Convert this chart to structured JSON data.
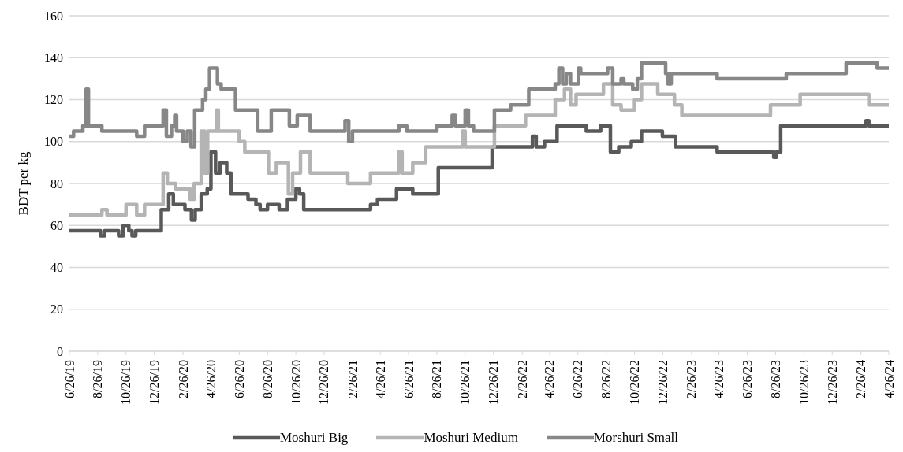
{
  "chart_data": {
    "type": "step",
    "ylabel": "BDT per kg",
    "xlim": [
      "2019-06-26",
      "2024-04-26"
    ],
    "ylim": [
      0,
      160
    ],
    "yticks": [
      0,
      20,
      40,
      60,
      80,
      100,
      120,
      140,
      160
    ],
    "xticks": [
      {
        "value": "2019-06-26",
        "label": "6/26/19"
      },
      {
        "value": "2019-08-26",
        "label": "8/26/19"
      },
      {
        "value": "2019-10-26",
        "label": "10/26/19"
      },
      {
        "value": "2019-12-26",
        "label": "12/26/19"
      },
      {
        "value": "2020-02-26",
        "label": "2/26/20"
      },
      {
        "value": "2020-04-26",
        "label": "4/26/20"
      },
      {
        "value": "2020-06-26",
        "label": "6/26/20"
      },
      {
        "value": "2020-08-26",
        "label": "8/26/20"
      },
      {
        "value": "2020-10-26",
        "label": "10/26/20"
      },
      {
        "value": "2020-12-26",
        "label": "12/26/20"
      },
      {
        "value": "2021-02-26",
        "label": "2/26/21"
      },
      {
        "value": "2021-04-26",
        "label": "4/26/21"
      },
      {
        "value": "2021-06-26",
        "label": "6/26/21"
      },
      {
        "value": "2021-08-26",
        "label": "8/26/21"
      },
      {
        "value": "2021-10-26",
        "label": "10/26/21"
      },
      {
        "value": "2021-12-26",
        "label": "12/26/21"
      },
      {
        "value": "2022-02-26",
        "label": "2/26/22"
      },
      {
        "value": "2022-04-26",
        "label": "4/26/22"
      },
      {
        "value": "2022-06-26",
        "label": "6/26/22"
      },
      {
        "value": "2022-08-26",
        "label": "8/26/22"
      },
      {
        "value": "2022-10-26",
        "label": "10/26/22"
      },
      {
        "value": "2022-12-26",
        "label": "12/26/22"
      },
      {
        "value": "2023-02-26",
        "label": "2/26/23"
      },
      {
        "value": "2023-04-26",
        "label": "4/26/23"
      },
      {
        "value": "2023-06-26",
        "label": "6/26/23"
      },
      {
        "value": "2023-08-26",
        "label": "8/26/23"
      },
      {
        "value": "2023-10-26",
        "label": "10/26/23"
      },
      {
        "value": "2023-12-26",
        "label": "12/26/23"
      },
      {
        "value": "2024-02-26",
        "label": "2/26/24"
      },
      {
        "value": "2024-04-26",
        "label": "4/26/24"
      }
    ],
    "grid": "y",
    "legend": "bottom",
    "line_style": "solid",
    "marker": "none",
    "series": [
      {
        "name": "Moshuri Big",
        "color": "#595959",
        "x": [
          "2019-06-26",
          "2019-09-01",
          "2019-09-10",
          "2019-10-10",
          "2019-10-20",
          "2019-11-01",
          "2019-11-08",
          "2019-11-16",
          "2020-01-10",
          "2020-01-26",
          "2020-02-05",
          "2020-03-01",
          "2020-03-15",
          "2020-03-23",
          "2020-04-05",
          "2020-04-18",
          "2020-04-26",
          "2020-05-06",
          "2020-05-16",
          "2020-05-30",
          "2020-06-08",
          "2020-07-15",
          "2020-08-01",
          "2020-08-10",
          "2020-08-26",
          "2020-09-20",
          "2020-10-08",
          "2020-10-26",
          "2020-11-03",
          "2020-11-12",
          "2021-04-05",
          "2021-04-20",
          "2021-05-31",
          "2021-07-05",
          "2021-08-29",
          "2021-12-23",
          "2022-01-05",
          "2022-03-20",
          "2022-03-28",
          "2022-04-15",
          "2022-05-12",
          "2022-07-14",
          "2022-08-14",
          "2022-09-04",
          "2022-09-22",
          "2022-10-19",
          "2022-11-10",
          "2022-12-25",
          "2023-01-22",
          "2023-04-22",
          "2023-08-22",
          "2023-08-28",
          "2023-09-06",
          "2024-03-08",
          "2024-03-14",
          "2024-04-26"
        ],
        "values": [
          57.5,
          55,
          57.5,
          55,
          60,
          57.5,
          55,
          57.5,
          67.5,
          75,
          70,
          67.5,
          62.5,
          67.5,
          75,
          77.5,
          95,
          85,
          90,
          85,
          75,
          72.5,
          70,
          67.5,
          70,
          67.5,
          72.5,
          77.5,
          75,
          67.5,
          70,
          72.5,
          77.5,
          75,
          87.5,
          97.5,
          97.5,
          102.5,
          97.5,
          100,
          107.5,
          105,
          107.5,
          95,
          97.5,
          100,
          105,
          102.5,
          97.5,
          95,
          92.5,
          95,
          107.5,
          110,
          107.5,
          107.5
        ]
      },
      {
        "name": "Moshuri Medium",
        "color": "#b4b4b4",
        "x": [
          "2019-06-26",
          "2019-09-04",
          "2019-09-15",
          "2019-10-26",
          "2019-11-18",
          "2019-12-05",
          "2020-01-14",
          "2020-01-23",
          "2020-02-10",
          "2020-03-12",
          "2020-03-21",
          "2020-04-05",
          "2020-04-12",
          "2020-04-19",
          "2020-05-08",
          "2020-05-12",
          "2020-06-26",
          "2020-07-08",
          "2020-08-28",
          "2020-09-14",
          "2020-10-10",
          "2020-10-19",
          "2020-11-05",
          "2020-11-26",
          "2021-02-15",
          "2021-04-05",
          "2021-06-05",
          "2021-06-12",
          "2021-07-05",
          "2021-08-02",
          "2021-08-26",
          "2021-10-20",
          "2021-10-26",
          "2021-12-28",
          "2022-03-05",
          "2022-05-08",
          "2022-05-28",
          "2022-06-10",
          "2022-06-22",
          "2022-08-20",
          "2022-09-09",
          "2022-09-27",
          "2022-10-26",
          "2022-11-10",
          "2022-12-15",
          "2023-01-20",
          "2023-02-05",
          "2023-08-15",
          "2023-10-18",
          "2024-03-14",
          "2024-04-26"
        ],
        "values": [
          65,
          67.5,
          65,
          70,
          65,
          70,
          85,
          80,
          77.5,
          72.5,
          80,
          105,
          85,
          105,
          115,
          105,
          100,
          95,
          85,
          90,
          75,
          85,
          95,
          85,
          80,
          85,
          95,
          85,
          90,
          97.5,
          97.5,
          105,
          97.5,
          107.5,
          112.5,
          120,
          125,
          117.5,
          122.5,
          127.5,
          117.5,
          115,
          120,
          127.5,
          122.5,
          117.5,
          112.5,
          117.5,
          122.5,
          117.5,
          117.5
        ]
      },
      {
        "name": "Morshuri Small",
        "color": "#878787",
        "x": [
          "2019-06-26",
          "2019-07-05",
          "2019-07-25",
          "2019-08-01",
          "2019-08-06",
          "2019-09-04",
          "2019-11-18",
          "2019-12-05",
          "2020-01-14",
          "2020-01-21",
          "2020-02-01",
          "2020-02-08",
          "2020-02-12",
          "2020-02-26",
          "2020-03-06",
          "2020-03-14",
          "2020-03-22",
          "2020-04-08",
          "2020-04-15",
          "2020-04-23",
          "2020-05-10",
          "2020-05-18",
          "2020-06-18",
          "2020-08-05",
          "2020-09-03",
          "2020-10-12",
          "2020-10-29",
          "2020-11-26",
          "2021-02-09",
          "2021-02-17",
          "2021-02-25",
          "2021-03-05",
          "2021-06-05",
          "2021-06-22",
          "2021-08-26",
          "2021-09-28",
          "2021-10-05",
          "2021-10-26",
          "2021-11-02",
          "2021-11-13",
          "2021-12-28",
          "2022-02-01",
          "2022-03-12",
          "2022-05-08",
          "2022-05-16",
          "2022-05-24",
          "2022-06-01",
          "2022-06-10",
          "2022-06-27",
          "2022-07-02",
          "2022-08-29",
          "2022-09-09",
          "2022-09-27",
          "2022-10-03",
          "2022-10-22",
          "2022-11-01",
          "2022-11-10",
          "2023-01-01",
          "2023-01-06",
          "2023-01-13",
          "2023-04-22",
          "2023-09-18",
          "2024-01-25",
          "2024-04-01",
          "2024-04-26"
        ],
        "values": [
          102.5,
          105,
          107.5,
          125,
          107.5,
          105,
          102.5,
          107.5,
          115,
          102.5,
          107.5,
          112.5,
          105,
          100,
          105,
          97.5,
          115,
          120,
          125,
          135,
          127.5,
          125,
          115,
          105,
          115,
          107.5,
          112.5,
          105,
          110,
          100,
          105,
          105,
          107.5,
          105,
          107.5,
          112.5,
          107.5,
          115,
          107.5,
          105,
          115,
          117.5,
          125,
          127.5,
          135,
          127.5,
          132.5,
          127.5,
          135,
          132.5,
          135,
          127.5,
          130,
          127.5,
          125,
          130,
          137.5,
          132.5,
          127.5,
          132.5,
          130,
          132.5,
          137.5,
          135,
          135
        ]
      }
    ]
  }
}
